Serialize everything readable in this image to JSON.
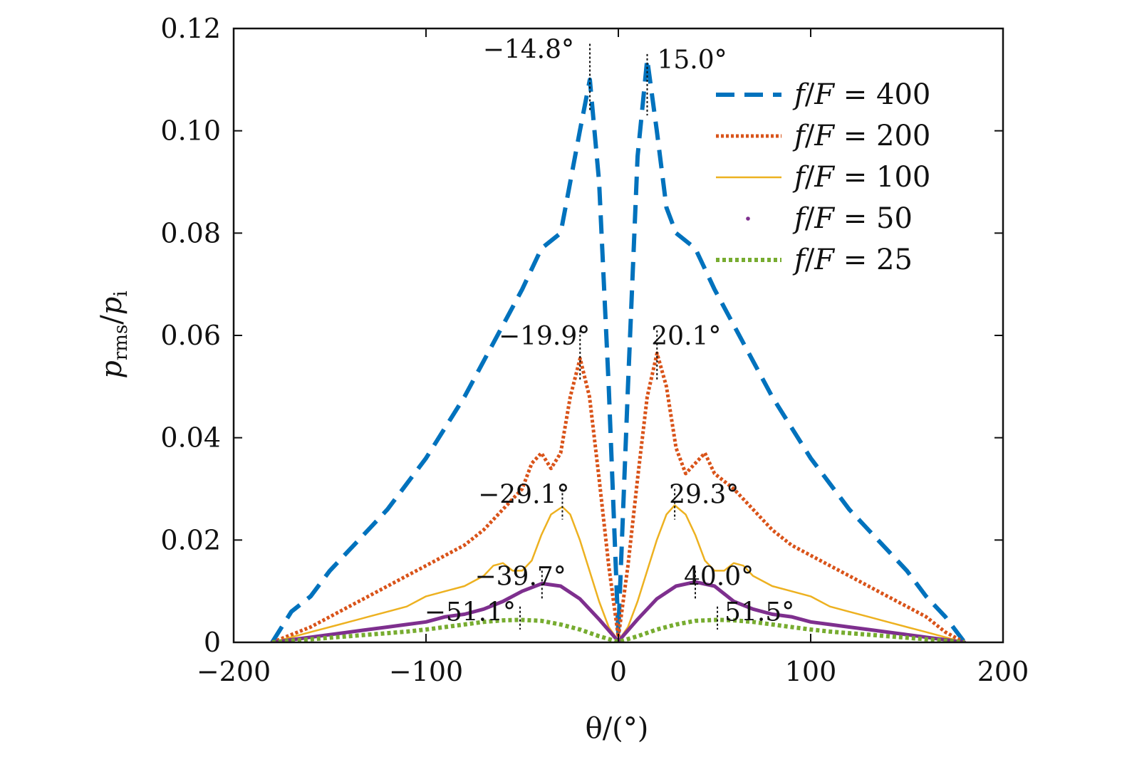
{
  "chart_data": {
    "type": "line",
    "xlabel": "θ/(°)",
    "ylabel": "p_rms/p_i",
    "ylabel_main": "p",
    "ylabel_sub1": "rms",
    "ylabel_slash": "/",
    "ylabel_main2": "p",
    "ylabel_sub2": "i",
    "xlim": [
      -200,
      200
    ],
    "ylim": [
      0,
      0.12
    ],
    "xticks": [
      -200,
      -100,
      0,
      100,
      200
    ],
    "xtick_labels": [
      "−200",
      "−100",
      "0",
      "100",
      "200"
    ],
    "yticks": [
      0,
      0.02,
      0.04,
      0.06,
      0.08,
      0.1,
      0.12
    ],
    "ytick_labels": [
      "0",
      "0.02",
      "0.04",
      "0.06",
      "0.08",
      "0.10",
      "0.12"
    ],
    "legend_position": "top-right",
    "series": [
      {
        "name": "f/F = 400",
        "color": "#0072BD",
        "style": "dashed",
        "x": [
          -180,
          -170,
          -160,
          -150,
          -140,
          -130,
          -120,
          -110,
          -100,
          -90,
          -80,
          -70,
          -60,
          -50,
          -40,
          -30,
          -25,
          -20,
          -14.8,
          -10,
          -5,
          0,
          5,
          10,
          15.0,
          20,
          25,
          30,
          40,
          50,
          60,
          70,
          80,
          90,
          100,
          110,
          120,
          130,
          140,
          150,
          160,
          170,
          180
        ],
        "y": [
          0,
          0.006,
          0.009,
          0.014,
          0.018,
          0.022,
          0.026,
          0.031,
          0.036,
          0.042,
          0.048,
          0.055,
          0.062,
          0.069,
          0.077,
          0.08,
          0.09,
          0.1,
          0.11,
          0.09,
          0.05,
          0.002,
          0.05,
          0.095,
          0.114,
          0.1,
          0.085,
          0.08,
          0.077,
          0.069,
          0.062,
          0.055,
          0.048,
          0.042,
          0.036,
          0.031,
          0.026,
          0.022,
          0.018,
          0.014,
          0.009,
          0.005,
          0
        ]
      },
      {
        "name": "f/F = 200",
        "color": "#D95319",
        "style": "dotted",
        "x": [
          -180,
          -170,
          -160,
          -150,
          -140,
          -130,
          -120,
          -110,
          -100,
          -90,
          -80,
          -70,
          -60,
          -50,
          -45,
          -40,
          -35,
          -30,
          -25,
          -19.9,
          -15,
          -10,
          -5,
          0,
          5,
          10,
          15,
          20.1,
          25,
          30,
          35,
          40,
          45,
          50,
          60,
          70,
          80,
          90,
          100,
          110,
          120,
          130,
          140,
          150,
          160,
          170,
          180
        ],
        "y": [
          0,
          0.0015,
          0.003,
          0.005,
          0.007,
          0.009,
          0.011,
          0.013,
          0.015,
          0.017,
          0.019,
          0.022,
          0.026,
          0.03,
          0.035,
          0.037,
          0.034,
          0.037,
          0.048,
          0.0555,
          0.048,
          0.032,
          0.015,
          0.001,
          0.015,
          0.032,
          0.048,
          0.0565,
          0.05,
          0.038,
          0.033,
          0.035,
          0.037,
          0.033,
          0.03,
          0.026,
          0.022,
          0.019,
          0.017,
          0.015,
          0.013,
          0.011,
          0.009,
          0.007,
          0.005,
          0.002,
          0
        ]
      },
      {
        "name": "f/F = 100",
        "color": "#EDB120",
        "style": "solid-thin",
        "x": [
          -180,
          -170,
          -160,
          -150,
          -140,
          -130,
          -120,
          -110,
          -100,
          -90,
          -80,
          -70,
          -65,
          -60,
          -55,
          -50,
          -45,
          -40,
          -35,
          -29.1,
          -25,
          -20,
          -15,
          -10,
          -5,
          0,
          5,
          10,
          15,
          20,
          25,
          29.3,
          35,
          40,
          45,
          50,
          55,
          60,
          65,
          70,
          80,
          90,
          100,
          110,
          120,
          130,
          140,
          150,
          160,
          170,
          180
        ],
        "y": [
          0,
          0.001,
          0.002,
          0.003,
          0.004,
          0.005,
          0.006,
          0.007,
          0.009,
          0.01,
          0.011,
          0.013,
          0.015,
          0.0155,
          0.014,
          0.014,
          0.016,
          0.021,
          0.025,
          0.0265,
          0.025,
          0.02,
          0.014,
          0.008,
          0.003,
          0.0003,
          0.003,
          0.008,
          0.014,
          0.02,
          0.025,
          0.0268,
          0.025,
          0.021,
          0.016,
          0.014,
          0.014,
          0.0155,
          0.015,
          0.013,
          0.011,
          0.01,
          0.009,
          0.007,
          0.006,
          0.005,
          0.004,
          0.003,
          0.002,
          0.001,
          0
        ]
      },
      {
        "name": "f/F = 50",
        "color": "#7E2F8E",
        "style": "solid-thick",
        "x": [
          -180,
          -170,
          -160,
          -150,
          -140,
          -130,
          -120,
          -110,
          -100,
          -90,
          -80,
          -70,
          -60,
          -50,
          -39.7,
          -30,
          -20,
          -10,
          0,
          10,
          20,
          30,
          40.0,
          50,
          60,
          70,
          80,
          90,
          100,
          110,
          120,
          130,
          140,
          150,
          160,
          170,
          180
        ],
        "y": [
          0,
          0.0005,
          0.001,
          0.0015,
          0.002,
          0.0025,
          0.003,
          0.0035,
          0.004,
          0.005,
          0.0055,
          0.0065,
          0.008,
          0.01,
          0.0115,
          0.011,
          0.0085,
          0.0045,
          0.0002,
          0.0045,
          0.0085,
          0.011,
          0.0118,
          0.011,
          0.008,
          0.0065,
          0.0055,
          0.005,
          0.004,
          0.0035,
          0.003,
          0.0025,
          0.002,
          0.0015,
          0.001,
          0.0005,
          0
        ]
      },
      {
        "name": "f/F = 25",
        "color": "#77AC30",
        "style": "dotted-thick",
        "x": [
          -180,
          -170,
          -160,
          -150,
          -140,
          -130,
          -120,
          -110,
          -100,
          -90,
          -80,
          -70,
          -60,
          -51.1,
          -40,
          -30,
          -20,
          -10,
          0,
          10,
          20,
          30,
          40,
          51.5,
          60,
          70,
          80,
          90,
          100,
          110,
          120,
          130,
          140,
          150,
          160,
          170,
          180
        ],
        "y": [
          0,
          0.0003,
          0.0006,
          0.0009,
          0.0012,
          0.0015,
          0.0018,
          0.0021,
          0.0025,
          0.003,
          0.0035,
          0.004,
          0.0043,
          0.0044,
          0.0042,
          0.0035,
          0.0025,
          0.0012,
          0.0001,
          0.0012,
          0.0025,
          0.0035,
          0.0042,
          0.0044,
          0.0043,
          0.004,
          0.0035,
          0.003,
          0.0025,
          0.0021,
          0.0018,
          0.0015,
          0.0012,
          0.0009,
          0.0006,
          0.0003,
          0
        ]
      }
    ],
    "annotations": [
      {
        "label": "−14.8°",
        "x": -14.8,
        "y_top": 0.117,
        "y_bottom": 0.104,
        "anchor": "end",
        "dx": -22
      },
      {
        "label": "15.0°",
        "x": 15.0,
        "y_top": 0.115,
        "y_bottom": 0.103,
        "anchor": "start",
        "dx": 14
      },
      {
        "label": "−19.9°",
        "x": -19.9,
        "y_top": 0.061,
        "y_bottom": 0.051,
        "anchor": "end",
        "dx": 14
      },
      {
        "label": "20.1°",
        "x": 20.1,
        "y_top": 0.061,
        "y_bottom": 0.051,
        "anchor": "start",
        "dx": -8
      },
      {
        "label": "−29.1°",
        "x": -29.1,
        "y_top": 0.03,
        "y_bottom": 0.024,
        "anchor": "end",
        "dx": 10
      },
      {
        "label": "29.3°",
        "x": 29.3,
        "y_top": 0.03,
        "y_bottom": 0.024,
        "anchor": "start",
        "dx": -8
      },
      {
        "label": "−39.7°",
        "x": -39.7,
        "y_top": 0.014,
        "y_bottom": 0.0085,
        "anchor": "end",
        "dx": 34
      },
      {
        "label": "40.0°",
        "x": 40.0,
        "y_top": 0.014,
        "y_bottom": 0.0085,
        "anchor": "start",
        "dx": -16
      },
      {
        "label": "−51.1°",
        "x": -51.1,
        "y_top": 0.007,
        "y_bottom": 0.0025,
        "anchor": "end",
        "dx": -6
      },
      {
        "label": "51.5°",
        "x": 51.5,
        "y_top": 0.007,
        "y_bottom": 0.0025,
        "anchor": "start",
        "dx": 10
      }
    ]
  }
}
